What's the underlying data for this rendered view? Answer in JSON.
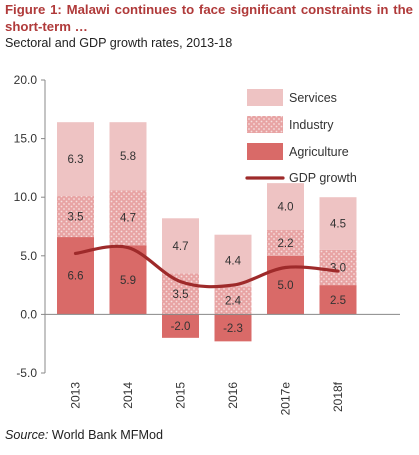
{
  "figure": {
    "title": "Figure 1: Malawi continues to face significant constraints in the short-term …",
    "subtitle": "Sectoral and GDP growth rates, 2013-18",
    "source_label": "Source:",
    "source_text": " World Bank MFMod"
  },
  "colors": {
    "services": "#eec3c3",
    "industry": "#e8a4a4",
    "industry_dots": "#f6dede",
    "agriculture": "#d96a68",
    "gdp_line": "#9e2a2a",
    "axis": "#888888"
  },
  "chart_data": {
    "type": "bar",
    "stacked": true,
    "categories": [
      "2013",
      "2014",
      "2015",
      "2016",
      "2017e",
      "2018f"
    ],
    "series": [
      {
        "name": "Agriculture",
        "values": [
          6.6,
          5.9,
          -2.0,
          -2.3,
          5.0,
          2.5
        ]
      },
      {
        "name": "Industry",
        "values": [
          3.5,
          4.7,
          3.5,
          2.4,
          2.2,
          3.0
        ]
      },
      {
        "name": "Services",
        "values": [
          6.3,
          5.8,
          4.7,
          4.4,
          4.0,
          4.5
        ]
      }
    ],
    "line": {
      "name": "GDP growth",
      "values": [
        5.2,
        5.7,
        2.8,
        2.5,
        4.0,
        3.7
      ]
    },
    "data_labels": [
      [
        "6.6",
        "5.9",
        "-2.0",
        "-2.3",
        "5.0",
        "2.5"
      ],
      [
        "3.5",
        "4.7",
        "3.5",
        "2.4",
        "2.2",
        "3.0"
      ],
      [
        "6.3",
        "5.8",
        "4.7",
        "4.4",
        "4.0",
        "4.5"
      ]
    ],
    "yticks": [
      "20.0",
      "15.0",
      "10.0",
      "5.0",
      "0.0",
      "-5.0"
    ],
    "ylim": [
      -5,
      20
    ],
    "legend_order": [
      "Services",
      "Industry",
      "Agriculture",
      "GDP growth"
    ],
    "legend_position": "top-right",
    "grid": false
  }
}
